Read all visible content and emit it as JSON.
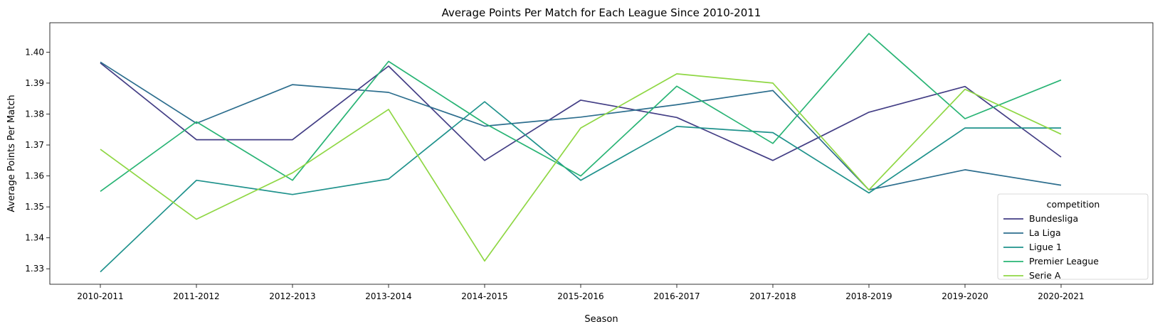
{
  "chart_data": {
    "type": "line",
    "title": "Average Points Per Match for Each League Since 2010-2011",
    "xlabel": "Season",
    "ylabel": "Average Points Per Match",
    "categories": [
      "2010-2011",
      "2011-2012",
      "2012-2013",
      "2013-2014",
      "2014-2015",
      "2015-2016",
      "2016-2017",
      "2017-2018",
      "2018-2019",
      "2019-2020",
      "2020-2021"
    ],
    "ylim": [
      1.325,
      1.4095
    ],
    "yticks": [
      "1.33",
      "1.34",
      "1.35",
      "1.36",
      "1.37",
      "1.38",
      "1.39",
      "1.40"
    ],
    "grid": false,
    "legend": {
      "title": "competition",
      "placement": "lower-right"
    },
    "series": [
      {
        "name": "Bundesliga",
        "color": "#433e85",
        "values": [
          1.3965,
          1.3717,
          1.3717,
          1.3955,
          1.365,
          1.3845,
          1.3789,
          1.365,
          1.3806,
          1.3889,
          1.3661
        ]
      },
      {
        "name": "La Liga",
        "color": "#2d6e8e",
        "values": [
          1.3968,
          1.377,
          1.3895,
          1.387,
          1.3761,
          1.379,
          1.383,
          1.3876,
          1.3555,
          1.362,
          1.357
        ]
      },
      {
        "name": "Ligue 1",
        "color": "#1f928c",
        "values": [
          1.329,
          1.3586,
          1.354,
          1.359,
          1.384,
          1.3586,
          1.376,
          1.374,
          1.3545,
          1.3755,
          1.3755
        ]
      },
      {
        "name": "Premier League",
        "color": "#29b475",
        "values": [
          1.355,
          1.3775,
          1.3586,
          1.397,
          1.377,
          1.36,
          1.389,
          1.3705,
          1.406,
          1.3785,
          1.391
        ]
      },
      {
        "name": "Serie A",
        "color": "#8fd744",
        "values": [
          1.3686,
          1.346,
          1.361,
          1.3815,
          1.3325,
          1.3755,
          1.393,
          1.39,
          1.3555,
          1.388,
          1.3735
        ]
      }
    ]
  }
}
